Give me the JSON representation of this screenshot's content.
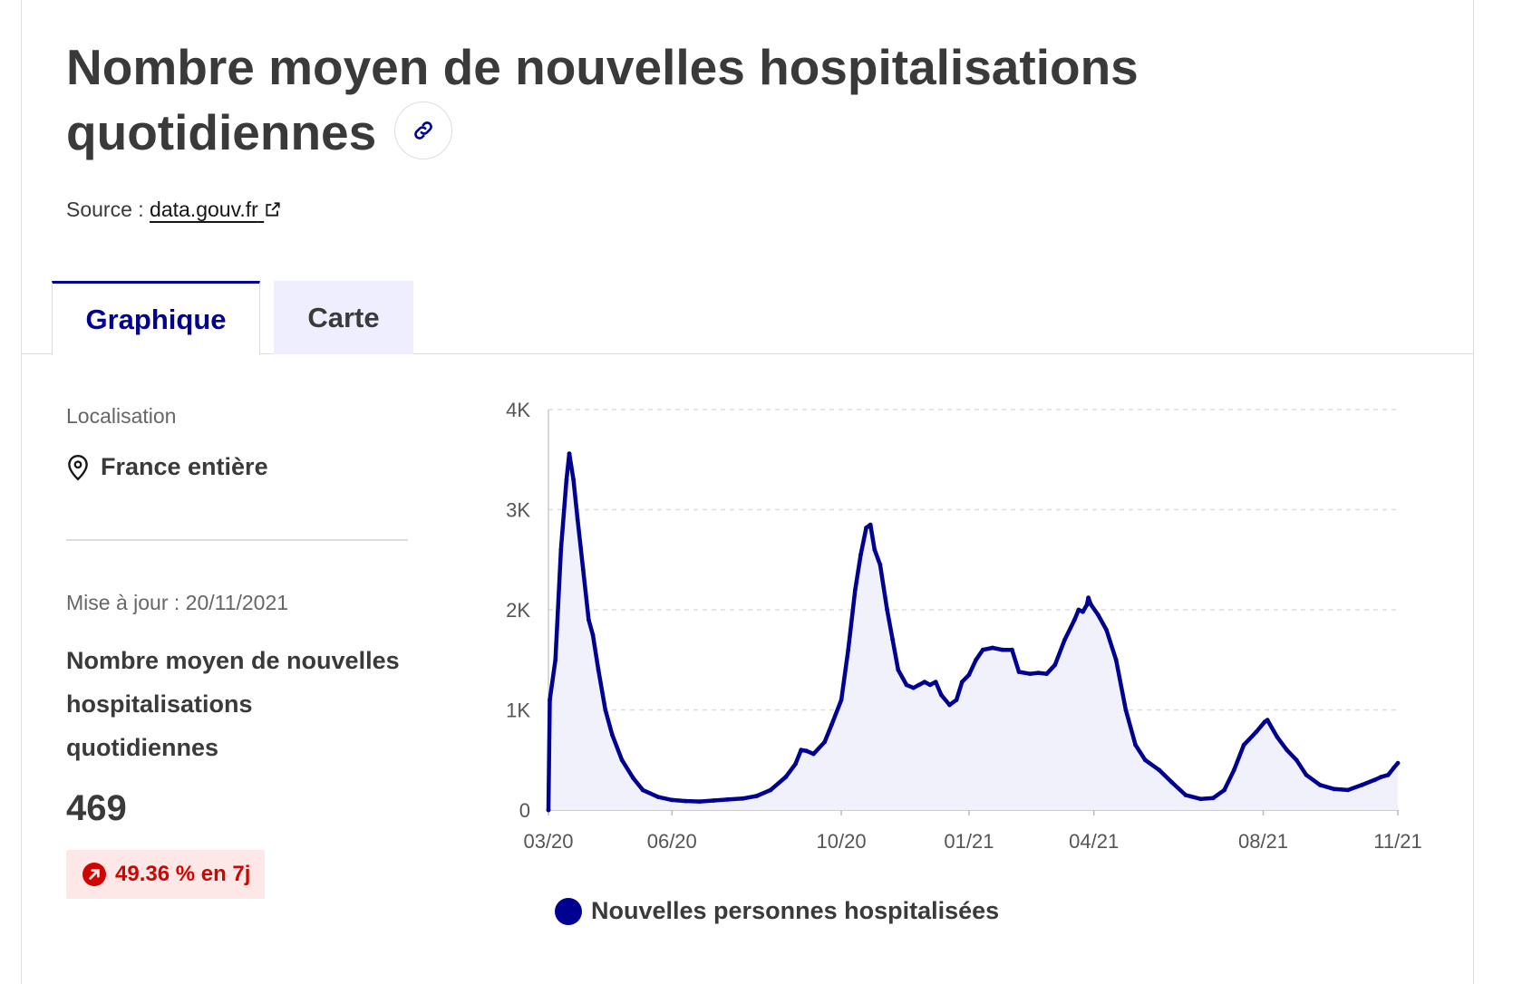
{
  "header": {
    "title": "Nombre moyen de nouvelles hospitalisations quotidiennes",
    "source_label": "Source :",
    "source_link": "data.gouv.fr"
  },
  "tabs": [
    {
      "label": "Graphique",
      "active": true
    },
    {
      "label": "Carte",
      "active": false
    }
  ],
  "sidebar": {
    "location_label": "Localisation",
    "location_value": "France entière",
    "update_label": "Mise à jour : 20/11/2021",
    "kpi_label": "Nombre moyen de nouvelles hospitalisations quotidiennes",
    "kpi_value": "469",
    "kpi_change": "49.36 % en 7j"
  },
  "colors": {
    "accent": "#000091",
    "area_fill": "#f1f1fb",
    "badge_text": "#ce0500",
    "badge_bg": "#fde8e7",
    "grid": "#dddddd"
  },
  "chart_data": {
    "type": "area",
    "ylim": [
      0,
      4000
    ],
    "y_ticks": [
      0,
      1000,
      2000,
      3000,
      4000
    ],
    "y_tick_labels": [
      "0",
      "1K",
      "2K",
      "3K",
      "4K"
    ],
    "x_ticks": [
      "2020-03-18",
      "2020-06-15",
      "2020-10-15",
      "2021-01-15",
      "2021-04-15",
      "2021-08-15",
      "2021-11-20"
    ],
    "x_tick_labels": [
      "03/20",
      "06/20",
      "10/20",
      "01/21",
      "04/21",
      "08/21",
      "11/21"
    ],
    "grid": true,
    "legend": "bottom",
    "series": [
      {
        "name": "Nouvelles personnes hospitalisées",
        "points": [
          [
            "2020-03-18",
            0
          ],
          [
            "2020-03-19",
            1100
          ],
          [
            "2020-03-23",
            1500
          ],
          [
            "2020-03-27",
            2600
          ],
          [
            "2020-03-31",
            3300
          ],
          [
            "2020-04-02",
            3560
          ],
          [
            "2020-04-05",
            3300
          ],
          [
            "2020-04-08",
            2900
          ],
          [
            "2020-04-12",
            2400
          ],
          [
            "2020-04-16",
            1900
          ],
          [
            "2020-04-19",
            1750
          ],
          [
            "2020-04-23",
            1400
          ],
          [
            "2020-04-28",
            1000
          ],
          [
            "2020-05-03",
            750
          ],
          [
            "2020-05-10",
            500
          ],
          [
            "2020-05-18",
            320
          ],
          [
            "2020-05-25",
            200
          ],
          [
            "2020-06-05",
            130
          ],
          [
            "2020-06-15",
            100
          ],
          [
            "2020-06-25",
            90
          ],
          [
            "2020-07-05",
            85
          ],
          [
            "2020-07-15",
            95
          ],
          [
            "2020-07-25",
            105
          ],
          [
            "2020-08-05",
            115
          ],
          [
            "2020-08-15",
            140
          ],
          [
            "2020-08-25",
            200
          ],
          [
            "2020-09-05",
            330
          ],
          [
            "2020-09-12",
            460
          ],
          [
            "2020-09-16",
            600
          ],
          [
            "2020-09-20",
            590
          ],
          [
            "2020-09-25",
            560
          ],
          [
            "2020-10-03",
            680
          ],
          [
            "2020-10-08",
            850
          ],
          [
            "2020-10-15",
            1100
          ],
          [
            "2020-10-20",
            1600
          ],
          [
            "2020-10-25",
            2200
          ],
          [
            "2020-10-29",
            2550
          ],
          [
            "2020-11-02",
            2820
          ],
          [
            "2020-11-05",
            2850
          ],
          [
            "2020-11-08",
            2600
          ],
          [
            "2020-11-12",
            2450
          ],
          [
            "2020-11-17",
            2000
          ],
          [
            "2020-11-21",
            1700
          ],
          [
            "2020-11-25",
            1400
          ],
          [
            "2020-12-01",
            1250
          ],
          [
            "2020-12-06",
            1220
          ],
          [
            "2020-12-10",
            1250
          ],
          [
            "2020-12-14",
            1280
          ],
          [
            "2020-12-18",
            1250
          ],
          [
            "2020-12-22",
            1280
          ],
          [
            "2020-12-26",
            1150
          ],
          [
            "2021-01-01",
            1050
          ],
          [
            "2021-01-06",
            1100
          ],
          [
            "2021-01-10",
            1280
          ],
          [
            "2021-01-15",
            1350
          ],
          [
            "2021-01-20",
            1500
          ],
          [
            "2021-01-25",
            1600
          ],
          [
            "2021-02-01",
            1620
          ],
          [
            "2021-02-08",
            1600
          ],
          [
            "2021-02-15",
            1600
          ],
          [
            "2021-02-20",
            1380
          ],
          [
            "2021-02-28",
            1360
          ],
          [
            "2021-03-06",
            1370
          ],
          [
            "2021-03-12",
            1360
          ],
          [
            "2021-03-18",
            1450
          ],
          [
            "2021-03-25",
            1700
          ],
          [
            "2021-04-01",
            1900
          ],
          [
            "2021-04-04",
            2000
          ],
          [
            "2021-04-07",
            1980
          ],
          [
            "2021-04-10",
            2050
          ],
          [
            "2021-04-11",
            2120
          ],
          [
            "2021-04-13",
            2050
          ],
          [
            "2021-04-18",
            1950
          ],
          [
            "2021-04-24",
            1800
          ],
          [
            "2021-05-01",
            1500
          ],
          [
            "2021-05-08",
            1000
          ],
          [
            "2021-05-15",
            650
          ],
          [
            "2021-05-22",
            500
          ],
          [
            "2021-06-01",
            400
          ],
          [
            "2021-06-10",
            280
          ],
          [
            "2021-06-20",
            150
          ],
          [
            "2021-07-01",
            110
          ],
          [
            "2021-07-10",
            120
          ],
          [
            "2021-07-18",
            200
          ],
          [
            "2021-07-25",
            400
          ],
          [
            "2021-08-01",
            650
          ],
          [
            "2021-08-10",
            780
          ],
          [
            "2021-08-16",
            880
          ],
          [
            "2021-08-18",
            900
          ],
          [
            "2021-08-25",
            730
          ],
          [
            "2021-09-01",
            600
          ],
          [
            "2021-09-08",
            500
          ],
          [
            "2021-09-15",
            350
          ],
          [
            "2021-09-25",
            250
          ],
          [
            "2021-10-05",
            210
          ],
          [
            "2021-10-15",
            200
          ],
          [
            "2021-10-25",
            250
          ],
          [
            "2021-11-03",
            300
          ],
          [
            "2021-11-08",
            330
          ],
          [
            "2021-11-13",
            350
          ],
          [
            "2021-11-17",
            420
          ],
          [
            "2021-11-20",
            469
          ]
        ]
      }
    ]
  }
}
